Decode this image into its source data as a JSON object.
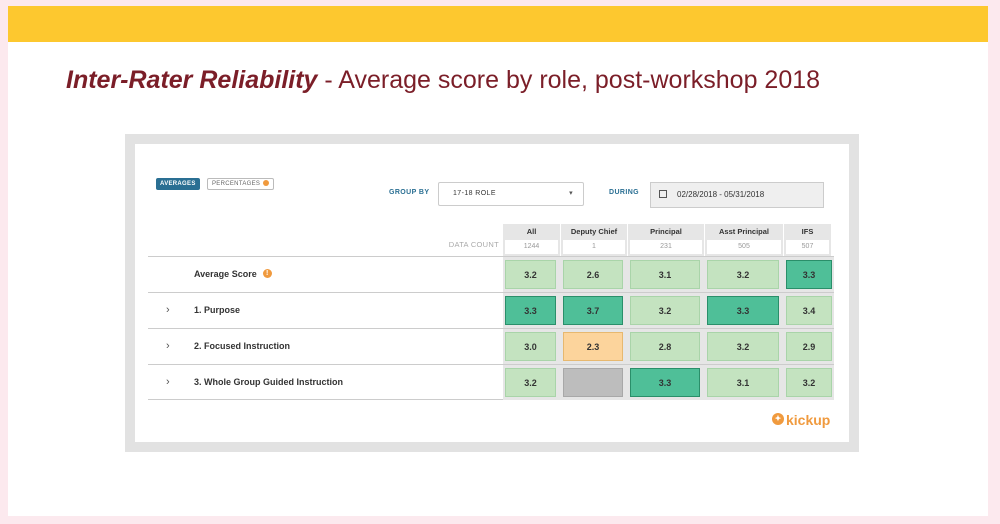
{
  "title": {
    "bold": "Inter-Rater Reliability",
    "rest": " - Average score by role, post-workshop 2018"
  },
  "controls": {
    "averages": "AVERAGES",
    "percentages": "PERCENTAGES",
    "group_by_label": "GROUP BY",
    "group_by_value": "17-18 ROLE",
    "during_label": "DURING",
    "date_range": "02/28/2018 - 05/31/2018"
  },
  "table": {
    "data_count_label": "DATA COUNT",
    "columns": [
      {
        "name": "All",
        "count": "1244"
      },
      {
        "name": "Deputy Chief",
        "count": "1"
      },
      {
        "name": "Principal",
        "count": "231"
      },
      {
        "name": "Asst Principal",
        "count": "505"
      },
      {
        "name": "IFS",
        "count": "507"
      }
    ],
    "rows": [
      {
        "label": "Average Score",
        "values": [
          "3.2",
          "2.6",
          "3.1",
          "3.2",
          "3.3"
        ],
        "colors": [
          "light",
          "light",
          "light",
          "light",
          "dark"
        ]
      },
      {
        "label": "1. Purpose",
        "values": [
          "3.3",
          "3.7",
          "3.2",
          "3.3",
          "3.4"
        ],
        "colors": [
          "dark",
          "dark",
          "light",
          "dark",
          "light"
        ]
      },
      {
        "label": "2. Focused Instruction",
        "values": [
          "3.0",
          "2.3",
          "2.8",
          "3.2",
          "2.9"
        ],
        "colors": [
          "light",
          "orange",
          "light",
          "light",
          "light"
        ]
      },
      {
        "label": "3. Whole Group Guided Instruction",
        "values": [
          "3.2",
          "",
          "3.3",
          "3.1",
          "3.2"
        ],
        "colors": [
          "light",
          "gray",
          "dark",
          "light",
          "light"
        ]
      }
    ]
  },
  "logo": "kickup",
  "palette": {
    "light": "#c4e3c0",
    "dark": "#4fbf98",
    "orange": "#fcd49c",
    "gray": "#bdbdbd",
    "header": "#fdc82f",
    "title": "#7b1e28"
  }
}
